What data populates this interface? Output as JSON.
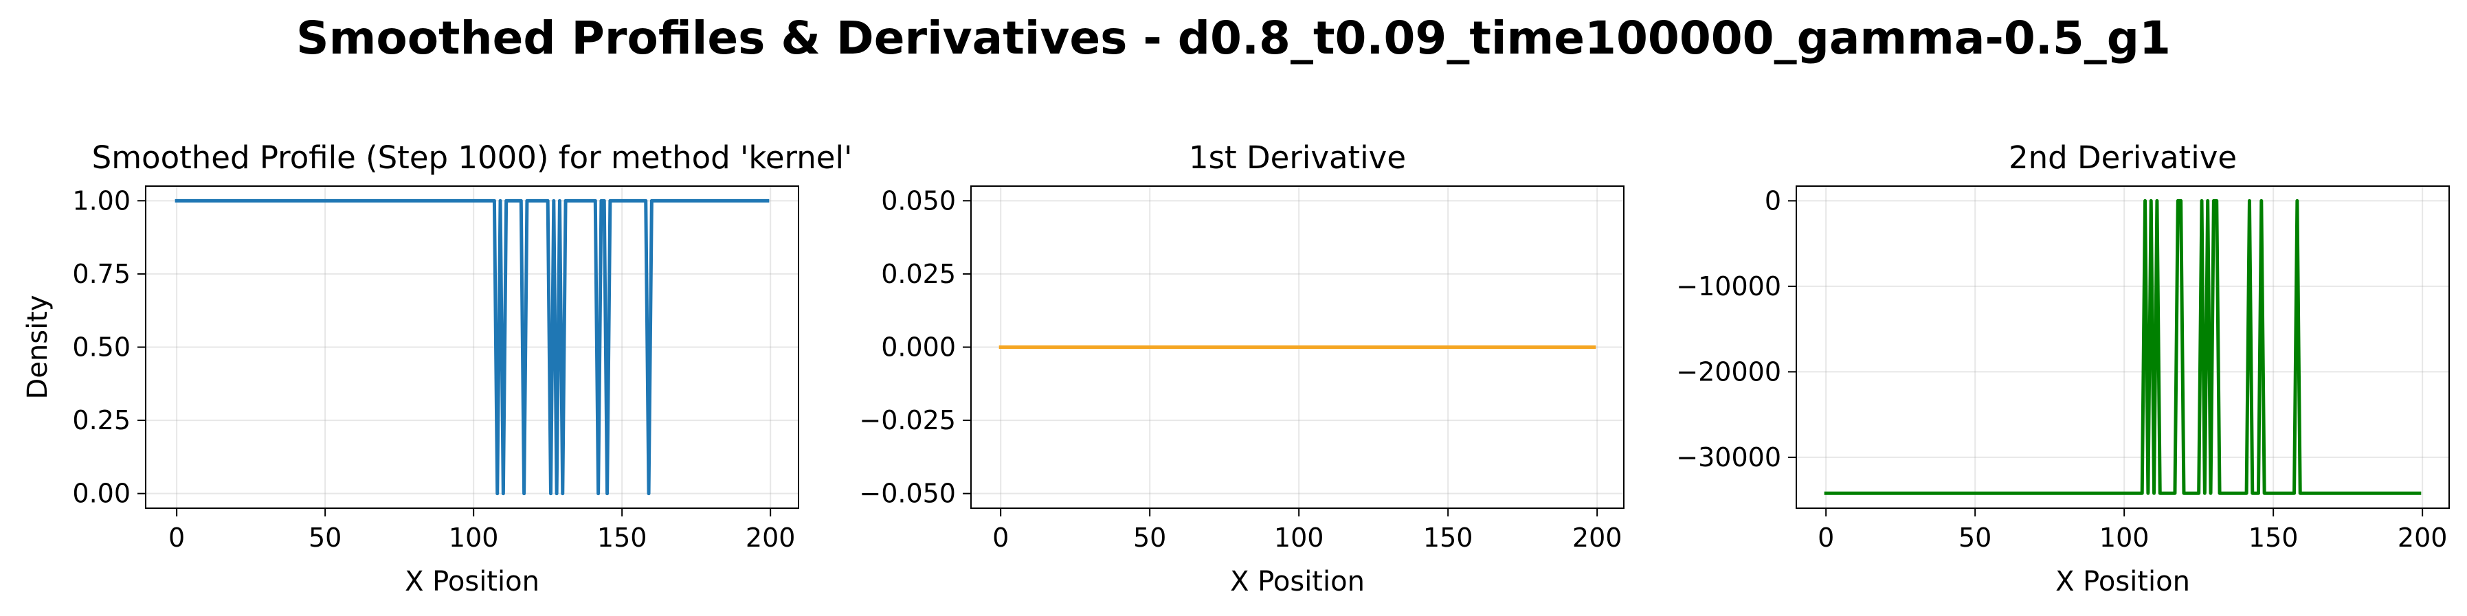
{
  "figure": {
    "suptitle": "Smoothed Profiles & Derivatives - d0.8_t0.09_time100000_gamma-0.5_g1"
  },
  "chart_data": [
    {
      "type": "line",
      "title": "Smoothed Profile (Step 1000) for method 'kernel'",
      "xlabel": "X Position",
      "ylabel": "Density",
      "xlim": [
        -10.45,
        209.45
      ],
      "ylim": [
        -0.05,
        1.05
      ],
      "xticks": [
        0,
        50,
        100,
        150,
        200
      ],
      "xtick_labels": [
        "0",
        "50",
        "100",
        "150",
        "200"
      ],
      "yticks": [
        0,
        0.25,
        0.5,
        0.75,
        1.0
      ],
      "ytick_labels": [
        "0.00",
        "0.25",
        "0.50",
        "0.75",
        "1.00"
      ],
      "grid": true,
      "color": "#1f77b4",
      "series": [
        {
          "x": [
            0,
            107,
            108,
            109,
            110,
            111,
            112,
            113,
            116,
            117,
            118,
            119,
            120,
            121,
            122,
            125,
            126,
            127,
            128,
            129,
            130,
            131,
            132,
            141,
            142,
            143,
            144,
            145,
            146,
            158,
            159,
            160,
            199
          ],
          "y": [
            1,
            1,
            0,
            1,
            0,
            1,
            1,
            1,
            1,
            0,
            1,
            1,
            1,
            1,
            1,
            1,
            0,
            1,
            0,
            1,
            0,
            1,
            1,
            1,
            0,
            1,
            1,
            0,
            1,
            1,
            0,
            1,
            1
          ]
        }
      ]
    },
    {
      "type": "line",
      "title": "1st Derivative",
      "xlabel": "X Position",
      "ylabel": "",
      "xlim": [
        -9.95,
        208.95
      ],
      "ylim": [
        -0.055,
        0.055
      ],
      "xticks": [
        0,
        50,
        100,
        150,
        200
      ],
      "xtick_labels": [
        "0",
        "50",
        "100",
        "150",
        "200"
      ],
      "yticks": [
        -0.05,
        -0.025,
        0,
        0.025,
        0.05
      ],
      "ytick_labels": [
        "−0.050",
        "−0.025",
        "0.000",
        "0.025",
        "0.050"
      ],
      "grid": true,
      "color": "#f5a623",
      "series": [
        {
          "x": [
            0,
            199
          ],
          "y": [
            0,
            0
          ]
        }
      ]
    },
    {
      "type": "line",
      "title": "2nd Derivative",
      "xlabel": "X Position",
      "ylabel": "",
      "xlim": [
        -9.95,
        208.95
      ],
      "ylim": [
        -35950,
        1720
      ],
      "xticks": [
        0,
        50,
        100,
        150,
        200
      ],
      "xtick_labels": [
        "0",
        "50",
        "100",
        "150",
        "200"
      ],
      "yticks": [
        -30000,
        -20000,
        -10000,
        0
      ],
      "ytick_labels": [
        "−30000",
        "−20000",
        "−10000",
        "0"
      ],
      "grid": true,
      "color": "#008000",
      "series": [
        {
          "x": [
            0,
            106,
            107,
            108,
            109,
            110,
            111,
            112,
            117,
            118,
            119,
            120,
            125,
            126,
            127,
            128,
            129,
            130,
            131,
            132,
            141,
            142,
            143,
            145,
            146,
            147,
            157,
            158,
            159,
            199
          ],
          "y": [
            -34200,
            -34200,
            0,
            -34200,
            0,
            -34200,
            0,
            -34200,
            -34200,
            0,
            0,
            -34200,
            -34200,
            0,
            -34200,
            0,
            -34200,
            0,
            0,
            -34200,
            -34200,
            0,
            -34200,
            -34200,
            0,
            -34200,
            -34200,
            0,
            -34200,
            -34200
          ]
        }
      ]
    }
  ]
}
